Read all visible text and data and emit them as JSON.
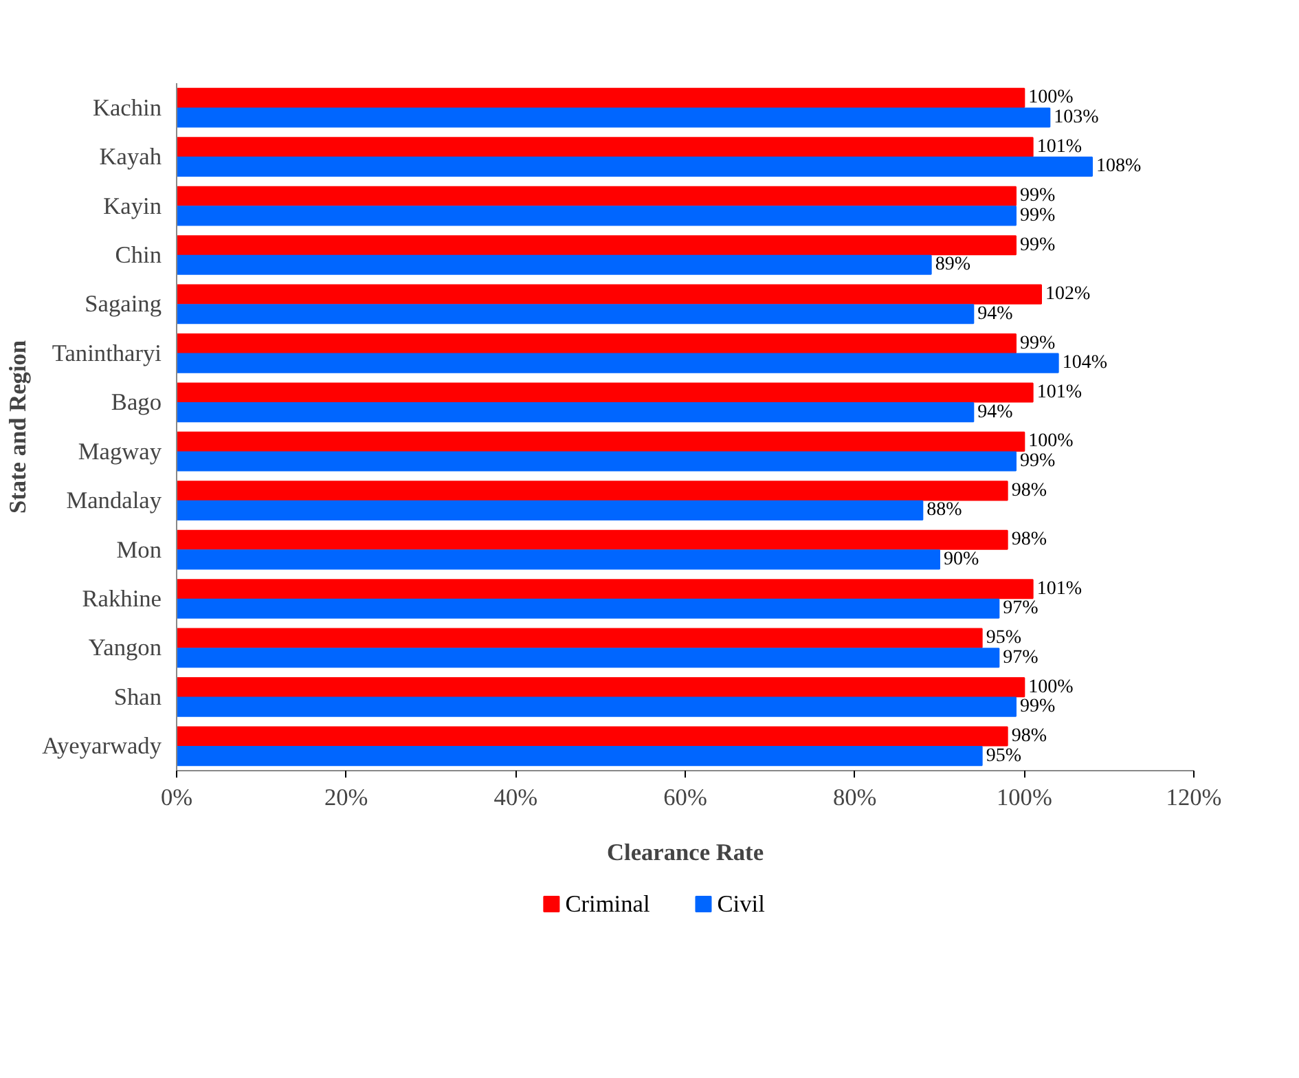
{
  "chart_data": {
    "type": "bar",
    "orientation": "horizontal",
    "xlabel": "Clearance Rate",
    "ylabel": "State and Region",
    "categories": [
      "Kachin",
      "Kayah",
      "Kayin",
      "Chin",
      "Sagaing",
      "Tanintharyi",
      "Bago",
      "Magway",
      "Mandalay",
      "Mon",
      "Rakhine",
      "Yangon",
      "Shan",
      "Ayeyarwady"
    ],
    "series": [
      {
        "name": "Criminal",
        "color": "#ff0000",
        "values": [
          100,
          101,
          99,
          99,
          102,
          99,
          101,
          100,
          98,
          98,
          101,
          95,
          100,
          98
        ],
        "value_labels": [
          "100%",
          "101%",
          "99%",
          "99%",
          "102%",
          "99%",
          "101%",
          "100%",
          "98%",
          "98%",
          "101%",
          "95%",
          "100%",
          "98%"
        ]
      },
      {
        "name": "Civil",
        "color": "#0066ff",
        "values": [
          103,
          108,
          99,
          89,
          94,
          104,
          94,
          99,
          88,
          90,
          97,
          97,
          99,
          95
        ],
        "value_labels": [
          "103%",
          "108%",
          "99%",
          "89%",
          "94%",
          "104%",
          "94%",
          "99%",
          "88%",
          "90%",
          "97%",
          "97%",
          "99%",
          "95%"
        ]
      }
    ],
    "xlim": [
      0,
      120
    ],
    "xticks": [
      {
        "value": 0,
        "label": "0%"
      },
      {
        "value": 20,
        "label": "20%"
      },
      {
        "value": 40,
        "label": "40%"
      },
      {
        "value": 60,
        "label": "60%"
      },
      {
        "value": 80,
        "label": "80%"
      },
      {
        "value": 100,
        "label": "100%"
      },
      {
        "value": 120,
        "label": "120%"
      }
    ],
    "grid": false,
    "legend": "bottom"
  }
}
